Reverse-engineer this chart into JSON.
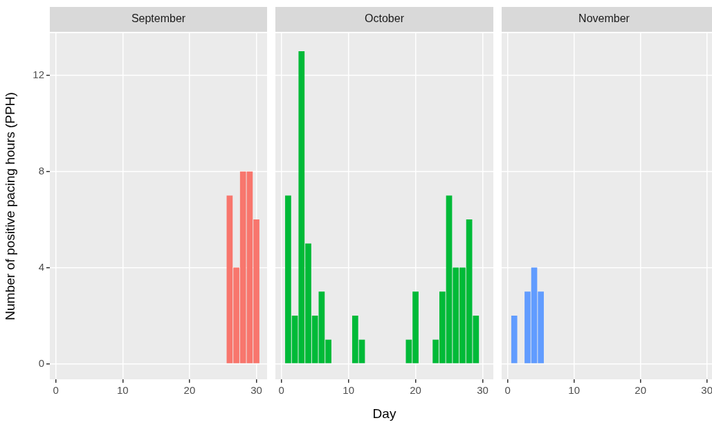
{
  "chart_data": [
    {
      "type": "bar",
      "title": "September",
      "ylabel": "Number of positive pacing hours (PPH)",
      "x": [
        26,
        27,
        28,
        29,
        30
      ],
      "values": [
        7,
        4,
        8,
        8,
        6
      ],
      "color": "#f8766d",
      "xlim": [
        -0.9,
        31.6
      ],
      "ylim": [
        -0.65,
        13.75
      ],
      "xticks": [
        0,
        10,
        20,
        30
      ],
      "yticks": [
        0,
        4,
        8,
        12
      ],
      "grid": true
    },
    {
      "type": "bar",
      "title": "October",
      "xlabel": "Day",
      "x": [
        1,
        2,
        3,
        4,
        5,
        6,
        7,
        11,
        12,
        19,
        20,
        23,
        24,
        25,
        26,
        27,
        28,
        29
      ],
      "values": [
        7,
        2,
        13,
        5,
        2,
        3,
        1,
        2,
        1,
        1,
        3,
        1,
        3,
        7,
        4,
        4,
        6,
        2
      ],
      "color": "#00ba38",
      "xlim": [
        -0.9,
        31.6
      ],
      "ylim": [
        -0.65,
        13.75
      ],
      "xticks": [
        0,
        10,
        20,
        30
      ],
      "yticks": [
        0,
        4,
        8,
        12
      ],
      "grid": true,
      "tick_labels": "x"
    },
    {
      "type": "bar",
      "title": "November",
      "x": [
        1,
        3,
        4,
        5
      ],
      "values": [
        2,
        3,
        4,
        3
      ],
      "color": "#619cff",
      "xlim": [
        -0.9,
        31.6
      ],
      "ylim": [
        -0.65,
        13.75
      ],
      "xticks": [
        0,
        10,
        20,
        30
      ],
      "yticks": [
        0,
        4,
        8,
        12
      ],
      "grid": true,
      "tick_labels": "x"
    }
  ]
}
